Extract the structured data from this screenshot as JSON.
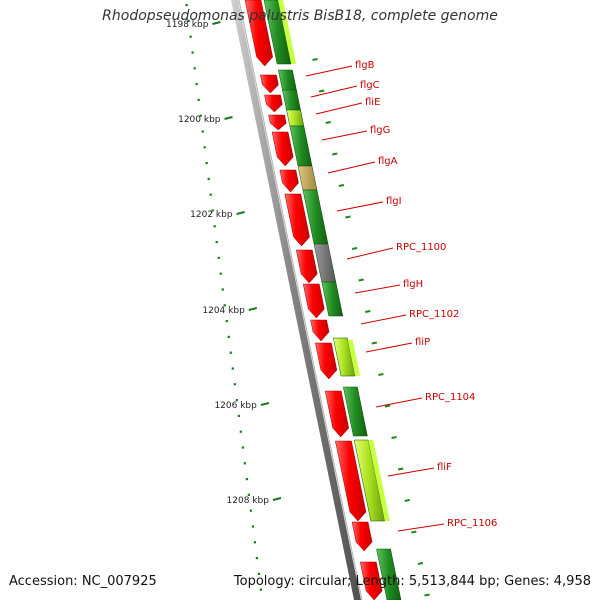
{
  "title": "Rhodopseudomonas palustris BisB18, complete genome",
  "accession": "Accession: NC_007925",
  "summary": "Topology: circular; Length: 5,513,844 bp; Genes: 4,958",
  "colors": {
    "forward_strand": "#ff0000",
    "reverse_strand": "#1f8a1f",
    "reverse_light": "#9acd32",
    "tan_gene": "#c8b060",
    "grey_gene": "#777777",
    "backbone": "#808080",
    "label": "#cc0000",
    "ticks": "#1a7a1a"
  },
  "scale_labels": [
    "1198 kbp",
    "1200 kbp",
    "1202 kbp",
    "1204 kbp",
    "1206 kbp",
    "1208 kbp"
  ],
  "genes": [
    {
      "name": "flgB"
    },
    {
      "name": "flgC"
    },
    {
      "name": "fliE"
    },
    {
      "name": "flgG"
    },
    {
      "name": "flgA"
    },
    {
      "name": "flgI"
    },
    {
      "name": "RPC_1100"
    },
    {
      "name": "flgH"
    },
    {
      "name": "RPC_1102"
    },
    {
      "name": "fliP"
    },
    {
      "name": "RPC_1104"
    },
    {
      "name": "fliF"
    },
    {
      "name": "RPC_1106"
    }
  ]
}
